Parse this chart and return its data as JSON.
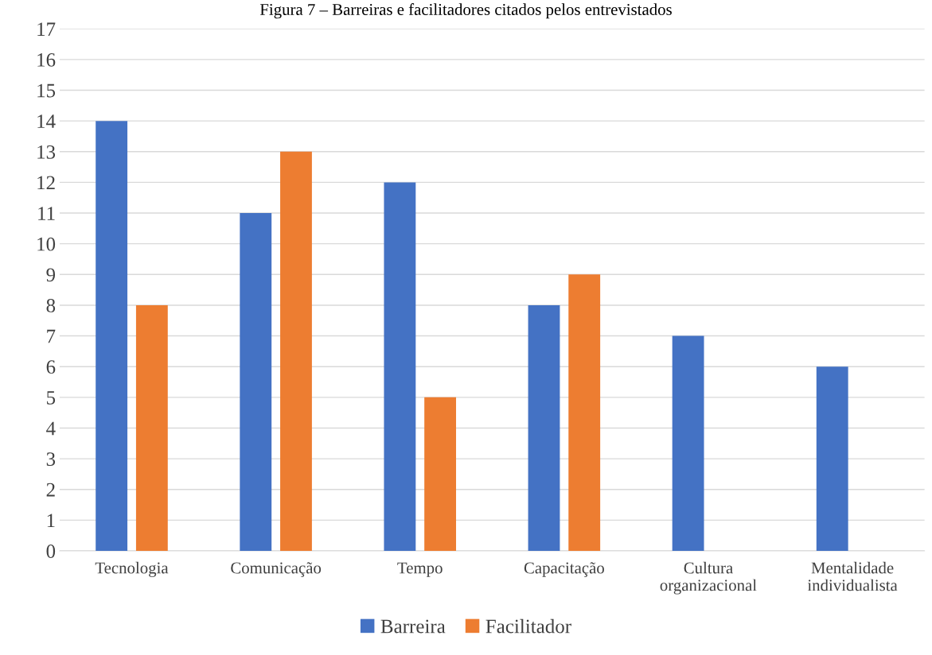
{
  "chart_data": {
    "type": "bar",
    "title": "Figura 7 – Barreiras e facilitadores citados pelos entrevistados",
    "categories": [
      "Tecnologia",
      "Comunicação",
      "Tempo",
      "Capacitação",
      "Cultura\norganizacional",
      "Mentalidade\nindividualista"
    ],
    "series": [
      {
        "name": "Barreira",
        "color": "#4472c4",
        "values": [
          14,
          11,
          12,
          8,
          7,
          6
        ]
      },
      {
        "name": "Facilitador",
        "color": "#ed7d31",
        "values": [
          8,
          13,
          5,
          9,
          0,
          0
        ]
      }
    ],
    "ylim": [
      0,
      17
    ],
    "yticks": [
      0,
      1,
      2,
      3,
      4,
      5,
      6,
      7,
      8,
      9,
      10,
      11,
      12,
      13,
      14,
      15,
      16,
      17
    ],
    "grid": "y",
    "legend": "bottom"
  }
}
